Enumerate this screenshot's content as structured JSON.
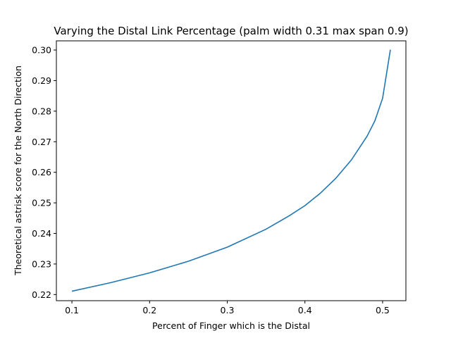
{
  "chart_data": {
    "type": "line",
    "title": "Varying the Distal Link Percentage (palm width 0.31 max span 0.9)",
    "xlabel": "Percent of Finger which is the Distal",
    "ylabel": "Theoretical astrisk score for the North Direction",
    "xlim": [
      0.08,
      0.53
    ],
    "ylim": [
      0.218,
      0.303
    ],
    "xticks": [
      0.1,
      0.2,
      0.3,
      0.4,
      0.5
    ],
    "xtick_labels": [
      "0.1",
      "0.2",
      "0.3",
      "0.4",
      "0.5"
    ],
    "yticks": [
      0.22,
      0.23,
      0.24,
      0.25,
      0.26,
      0.27,
      0.28,
      0.29,
      0.3
    ],
    "ytick_labels": [
      "0.22",
      "0.23",
      "0.24",
      "0.25",
      "0.26",
      "0.27",
      "0.28",
      "0.29",
      "0.30"
    ],
    "grid": false,
    "series": [
      {
        "color": "#1f77b4",
        "x": [
          0.1,
          0.15,
          0.2,
          0.25,
          0.3,
          0.35,
          0.38,
          0.4,
          0.42,
          0.44,
          0.46,
          0.48,
          0.49,
          0.5,
          0.51
        ],
        "y": [
          0.2211,
          0.2239,
          0.2271,
          0.2309,
          0.2355,
          0.2414,
          0.2458,
          0.2491,
          0.2532,
          0.2581,
          0.2641,
          0.2718,
          0.2768,
          0.2842,
          0.3001
        ]
      }
    ]
  }
}
